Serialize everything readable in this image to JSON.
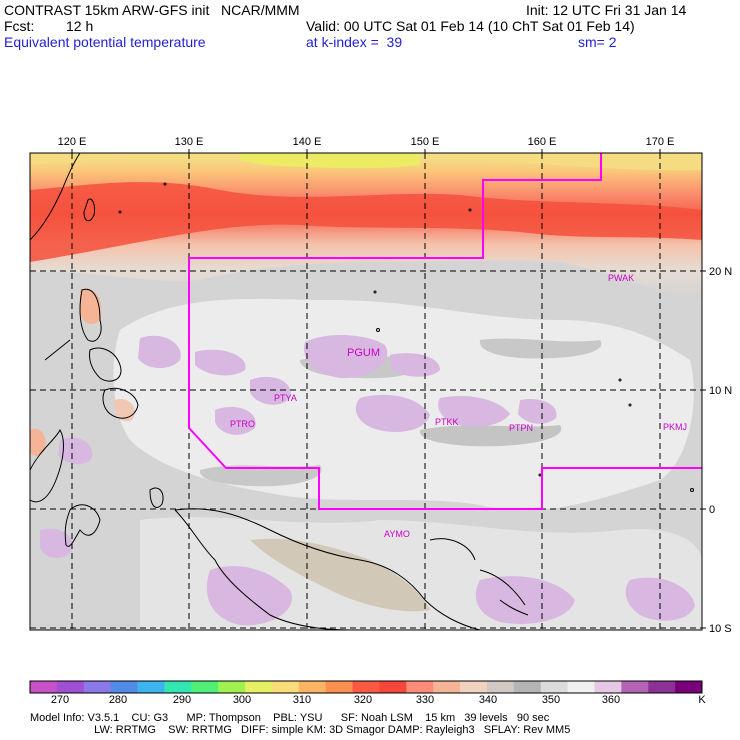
{
  "header": {
    "title": "CONTRAST 15km ARW-GFS init   NCAR/MMM",
    "init": "Init: 12 UTC Fri 31 Jan 14",
    "fcst_label": "Fcst:",
    "fcst_value": "12 h",
    "valid": "Valid: 00 UTC Sat 01 Feb 14 (10 ChT Sat 01 Feb 14)",
    "field_name": "Equivalent potential temperature",
    "level": "at k-index =  39",
    "smoothing": "sm= 2"
  },
  "map": {
    "lon_labels": [
      "120 E",
      "130 E",
      "140 E",
      "150 E",
      "160 E",
      "170 E"
    ],
    "lat_labels": [
      "20 N",
      "10 N",
      "0",
      "10 S"
    ],
    "stations": [
      {
        "id": "PWAK",
        "big": false
      },
      {
        "id": "PGUM",
        "big": true
      },
      {
        "id": "PTYA",
        "big": false
      },
      {
        "id": "PTRO",
        "big": false
      },
      {
        "id": "PTKK",
        "big": false
      },
      {
        "id": "PTPN",
        "big": false
      },
      {
        "id": "PKMJ",
        "big": false
      },
      {
        "id": "AYMO",
        "big": false
      }
    ],
    "domain_color": "#ff00ff"
  },
  "colorbar": {
    "unit": "K",
    "colors": [
      "#c850c8",
      "#a050d2",
      "#8c78e6",
      "#508ce6",
      "#3cb4f0",
      "#32e6b4",
      "#50f078",
      "#a0f050",
      "#e6f064",
      "#fadc78",
      "#fab464",
      "#fa9150",
      "#fa5a41",
      "#f5463c",
      "#fa8c78",
      "#f5b496",
      "#f0d2be",
      "#d2c8c3",
      "#b4b4b4",
      "#dcdcdc",
      "#f0f0f0",
      "#e6c8e6",
      "#b464b4",
      "#8c3296",
      "#780078"
    ],
    "labels": [
      "270",
      "280",
      "290",
      "300",
      "310",
      "320",
      "330",
      "340",
      "350",
      "360"
    ]
  },
  "model_info": {
    "line1": "Model Info: V3.5.1    CU: G3      MP: Thompson    PBL: YSU      SF: Noah LSM    15 km   39 levels   90 sec",
    "line2": "                     LW: RRTMG    SW: RRTMG   DIFF: simple KM: 3D Smagor DAMP: Rayleigh3   SFLAY: Rev MM5"
  }
}
